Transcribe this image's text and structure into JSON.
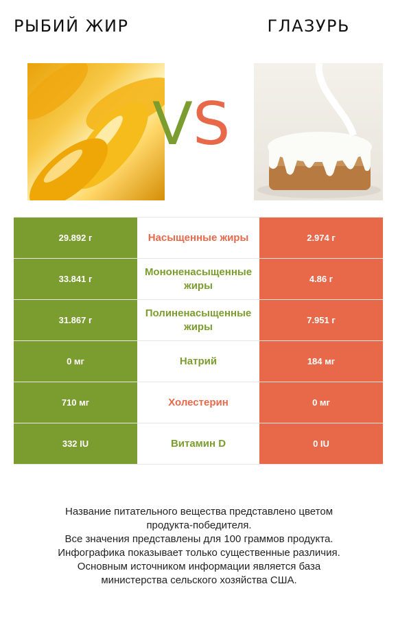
{
  "left_product": {
    "name": "Рыбий жир",
    "color": "#7b9c2e"
  },
  "right_product": {
    "name": "Глазурь",
    "color": "#e8694a"
  },
  "vs": {
    "v": "V",
    "s": "S"
  },
  "rows": [
    {
      "left": "29.892 г",
      "nutrient": "Насыщенные жиры",
      "right": "2.974 г",
      "winner": "right"
    },
    {
      "left": "33.841 г",
      "nutrient": "Мононенасыщенные жиры",
      "right": "4.86 г",
      "winner": "left"
    },
    {
      "left": "31.867 г",
      "nutrient": "Полиненасыщенные жиры",
      "right": "7.951 г",
      "winner": "left"
    },
    {
      "left": "0 мг",
      "nutrient": "Натрий",
      "right": "184 мг",
      "winner": "left"
    },
    {
      "left": "710 мг",
      "nutrient": "Холестерин",
      "right": "0 мг",
      "winner": "right"
    },
    {
      "left": "332 IU",
      "nutrient": "Витамин D",
      "right": "0 IU",
      "winner": "left"
    }
  ],
  "footer": {
    "line1": "Название питательного вещества представлено цветом",
    "line2": "продукта-победителя.",
    "line3": "Все значения представлены для 100 граммов продукта.",
    "line4": "Инфографика показывает только существенные различия.",
    "line5": "Основным источником информации является база",
    "line6": "министерства сельского хозяйства США."
  }
}
